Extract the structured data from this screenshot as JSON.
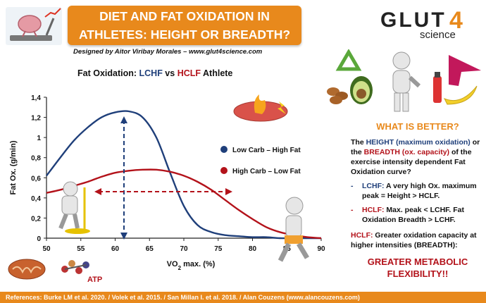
{
  "header": {
    "title_line1": "DIET AND FAT OXIDATION IN",
    "title_line2": "ATHLETES: HEIGHT OR BREADTH?",
    "credit": "Designed by Aitor Viribay Morales – www.glut4science.com"
  },
  "brand": {
    "name": "GLUT",
    "number": "4",
    "sub": "science"
  },
  "chart_data": {
    "type": "line",
    "title_prefix": "Fat Oxidation: ",
    "title_lchf": "LCHF",
    "title_vs": " vs ",
    "title_hclf": "HCLF",
    "title_suffix": " Athlete",
    "xlabel": "VO",
    "xlabel_sub": "2",
    "xlabel_suffix": " max. (%)",
    "ylabel": "Fat Ox. (g/min)",
    "xlim": [
      50,
      90
    ],
    "ylim": [
      0,
      1.4
    ],
    "xticks": [
      50,
      55,
      60,
      65,
      70,
      75,
      80,
      85,
      90
    ],
    "ytick_labels": [
      "0",
      "0,2",
      "0,4",
      "0,6",
      "0,8",
      "1",
      "1,2",
      "1,4"
    ],
    "yticks": [
      0,
      0.2,
      0.4,
      0.6,
      0.8,
      1.0,
      1.2,
      1.4
    ],
    "grid": false,
    "legend_position": "right",
    "series": [
      {
        "name": "Low Carb – High Fat",
        "color": "#1f3f7a",
        "x": [
          50,
          52,
          54,
          56,
          58,
          60,
          62,
          64,
          66,
          68,
          70,
          72,
          74,
          76,
          78,
          80,
          82,
          84,
          86,
          88,
          90
        ],
        "y": [
          0.62,
          0.8,
          0.97,
          1.1,
          1.2,
          1.25,
          1.26,
          1.2,
          1.0,
          0.65,
          0.32,
          0.13,
          0.06,
          0.03,
          0.02,
          0.01,
          0.01,
          0.0,
          0.0,
          0.0,
          0.0
        ]
      },
      {
        "name": "High Carb – Low Fat",
        "color": "#b3121a",
        "x": [
          50,
          52,
          54,
          56,
          58,
          60,
          62,
          64,
          66,
          68,
          70,
          72,
          74,
          76,
          78,
          80,
          82,
          84,
          86,
          88,
          90
        ],
        "y": [
          0.45,
          0.48,
          0.52,
          0.56,
          0.61,
          0.65,
          0.67,
          0.68,
          0.68,
          0.66,
          0.62,
          0.56,
          0.48,
          0.38,
          0.28,
          0.19,
          0.11,
          0.06,
          0.03,
          0.01,
          0.0
        ]
      }
    ]
  },
  "right_panel": {
    "question": "WHAT IS BETTER?",
    "intro_1": "The ",
    "intro_height": "HEIGHT",
    "intro_maxox": " (maximum oxidation)",
    "intro_or": " or the ",
    "intro_breadth": "BREADTH",
    "intro_capacity": " (ox. capacity)",
    "intro_rest": " of the exercise intensity dependent Fat Oxidation curve?",
    "bullet_lchf_label": "LCHF:",
    "bullet_lchf_text": " A very high Ox. maximum peak = Height > HCLF.",
    "bullet_hclf_label": "HCLF:",
    "bullet_hclf_text": " Max. peak < LCHF. Fat Oxidation Breadth > LCHF.",
    "hclf_label": "HCLF:",
    "hclf_text": " Greater oxidation capacity at higher intensities (BREADTH):",
    "conclusion_1": "GREATER METABOLIC",
    "conclusion_2": "FLEXIBILITY!!"
  },
  "atp_label": "ATP",
  "footer": "References: Burke LM et al. 2020. / Volek et al. 2015. / San Millan I. et al. 2018. / Alan Couzens (www.alancouzens.com)"
}
